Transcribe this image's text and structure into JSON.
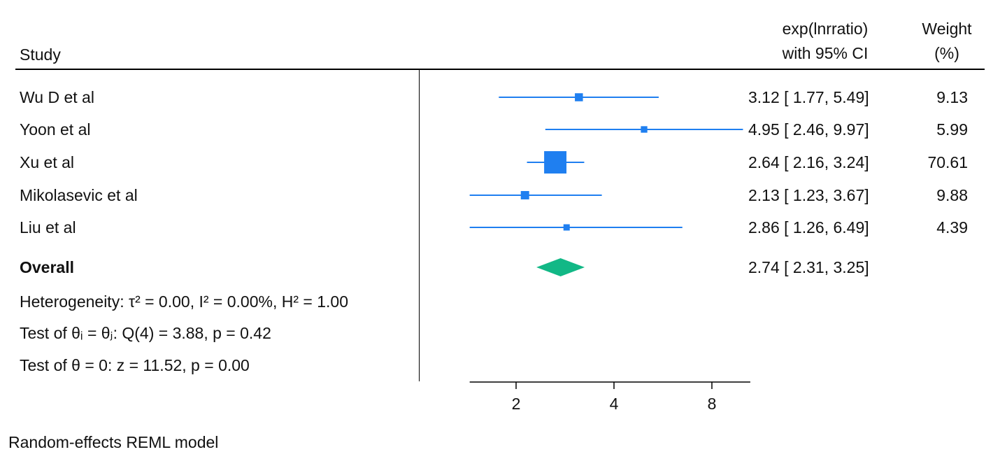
{
  "header": {
    "study_label": "Study",
    "effect_line1": "exp(lnrratio)",
    "effect_line2": "with 95% CI",
    "weight_line1": "Weight",
    "weight_line2": "(%)"
  },
  "footnote": "Random-effects REML model",
  "stats": {
    "heterogeneity": "Heterogeneity: τ² = 0.00, I² = 0.00%, H² = 1.00",
    "test_equal": "Test of θᵢ = θⱼ: Q(4) = 3.88, p = 0.42",
    "test_zero": "Test of θ = 0: z = 11.52, p = 0.00"
  },
  "colors": {
    "study_marker": "#1f7ff0",
    "overall_diamond": "#12b886",
    "axis": "#000000"
  },
  "chart_data": {
    "type": "forest",
    "scale": "log",
    "x_ticks": [
      2,
      4,
      8
    ],
    "xlim": [
      1.44,
      10.5
    ],
    "studies": [
      {
        "name": "Wu D et al",
        "estimate": 3.12,
        "lower": 1.77,
        "upper": 5.49,
        "weight": 9.13,
        "ci_text": "3.12 [ 1.77,  5.49]",
        "weight_text": "9.13"
      },
      {
        "name": "Yoon et al",
        "estimate": 4.95,
        "lower": 2.46,
        "upper": 9.97,
        "weight": 5.99,
        "ci_text": "4.95 [ 2.46,  9.97]",
        "weight_text": "5.99"
      },
      {
        "name": "Xu et al",
        "estimate": 2.64,
        "lower": 2.16,
        "upper": 3.24,
        "weight": 70.61,
        "ci_text": "2.64 [ 2.16,  3.24]",
        "weight_text": "70.61"
      },
      {
        "name": "Mikolasevic et al",
        "estimate": 2.13,
        "lower": 1.23,
        "upper": 3.67,
        "weight": 9.88,
        "ci_text": "2.13 [ 1.23,  3.67]",
        "weight_text": "9.88"
      },
      {
        "name": "Liu et al",
        "estimate": 2.86,
        "lower": 1.26,
        "upper": 6.49,
        "weight": 4.39,
        "ci_text": "2.86 [ 1.26,  6.49]",
        "weight_text": "4.39"
      }
    ],
    "overall": {
      "name": "Overall",
      "estimate": 2.74,
      "lower": 2.31,
      "upper": 3.25,
      "ci_text": "2.74 [ 2.31,  3.25]"
    }
  }
}
